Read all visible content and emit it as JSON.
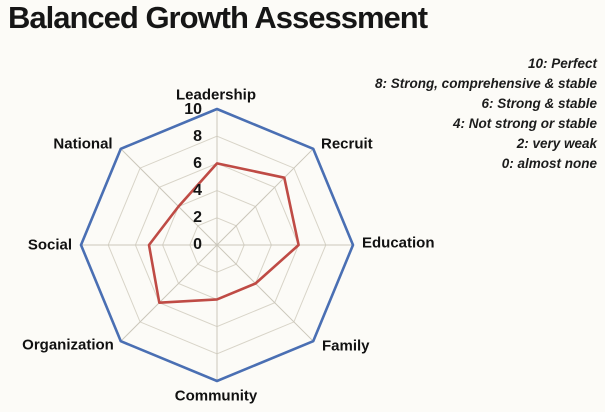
{
  "title": "Balanced Growth Assessment",
  "scale_legend": [
    "10: Perfect",
    "8: Strong, comprehensive & stable",
    "6: Strong & stable",
    "4: Not strong or stable",
    "2: very weak",
    "0: almost none"
  ],
  "chart_data": {
    "type": "radar",
    "title": "Balanced Growth Assessment",
    "categories": [
      "Leadership",
      "Recruit",
      "Education",
      "Family",
      "Community",
      "Organization",
      "Social",
      "National"
    ],
    "values": [
      6,
      7,
      6,
      4,
      4,
      6,
      5,
      4
    ],
    "rlim": [
      0,
      10
    ],
    "ticks": [
      10,
      8,
      6,
      4,
      2,
      0
    ],
    "tick_labels": [
      "10",
      "8",
      "6",
      "4",
      "2",
      "0"
    ],
    "grid": true,
    "legend_position": "top-right",
    "colors": {
      "outer_ring": "#4a6fb3",
      "series": "#bf4b45",
      "gridline": "#d8d4c8",
      "spoke": "#cbc7bb",
      "background": "#fcfbf7",
      "text": "#141414"
    }
  }
}
